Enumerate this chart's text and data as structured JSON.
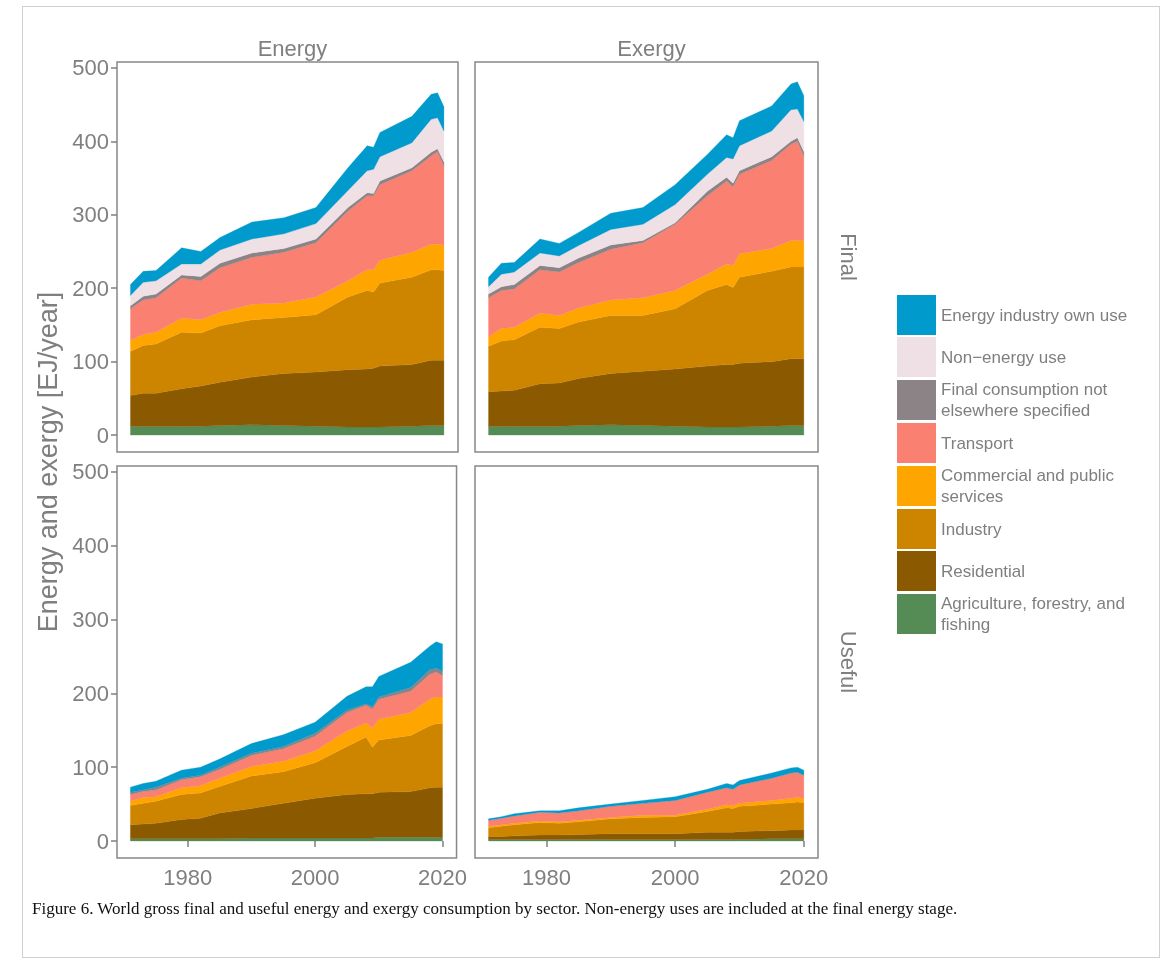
{
  "chart_data": [
    {
      "type": "area",
      "stacked": true,
      "title": "Energy",
      "ylabel": "Energy and exergy [EJ/year]",
      "annotations": [
        "Figure 6. World gross final and useful energy and exergy consumption by sector. Non-energy uses are included at the final energy stage."
      ],
      "x": [
        1971,
        1973,
        1975,
        1979,
        1982,
        1985,
        1990,
        1995,
        2000,
        2005,
        2008,
        2009,
        2010,
        2015,
        2018,
        2019,
        2020
      ],
      "xlim": [
        1968.9,
        2022.2
      ],
      "xticks": [
        1980,
        2000,
        2020
      ],
      "ylim": [
        -23,
        508
      ],
      "yticks": [
        0,
        100,
        200,
        300,
        400,
        500
      ],
      "tick_labels": "y",
      "series": [
        {
          "color": "#558b55",
          "values": [
            12,
            12,
            12,
            12,
            12,
            13,
            14,
            13,
            12,
            11,
            11,
            11,
            11,
            12,
            13,
            13,
            13
          ]
        },
        {
          "color": "#8b5a00",
          "values": [
            42,
            45,
            45,
            51,
            55,
            59,
            65,
            71,
            74,
            78,
            79,
            80,
            83,
            84,
            89,
            89,
            89
          ]
        },
        {
          "color": "#cd8500",
          "values": [
            60,
            65,
            67,
            77,
            72,
            77,
            78,
            76,
            78,
            99,
            107,
            104,
            113,
            119,
            123,
            123,
            122
          ]
        },
        {
          "color": "#ffa500",
          "values": [
            15,
            15,
            16,
            19,
            18,
            18,
            21,
            20,
            24,
            22,
            28,
            30,
            31,
            34,
            35,
            35,
            35
          ]
        },
        {
          "color": "#fa8072",
          "values": [
            43,
            47,
            47,
            55,
            53,
            61,
            64,
            69,
            74,
            95,
            101,
            101,
            103,
            111,
            120,
            126,
            107
          ]
        },
        {
          "color": "#8b8386",
          "values": [
            4,
            5,
            5,
            4,
            6,
            6,
            6,
            5,
            5,
            5,
            4,
            3,
            5,
            4,
            5,
            4,
            6
          ]
        },
        {
          "color": "#eee0e5",
          "values": [
            14,
            19,
            18,
            15,
            17,
            18,
            19,
            20,
            21,
            23,
            30,
            33,
            33,
            34,
            45,
            42,
            42
          ]
        },
        {
          "color": "#009acd",
          "values": [
            15,
            15,
            14,
            22,
            17,
            17,
            23,
            22,
            22,
            31,
            34,
            30,
            33,
            36,
            34,
            34,
            33
          ]
        }
      ]
    },
    {
      "type": "area",
      "stacked": true,
      "title": "Exergy",
      "annotations": [
        "Final"
      ],
      "legend": "right",
      "x": [
        1971,
        1973,
        1975,
        1979,
        1982,
        1985,
        1990,
        1995,
        2000,
        2005,
        2008,
        2009,
        2010,
        2015,
        2018,
        2019,
        2020
      ],
      "xlim": [
        1968.9,
        2022.2
      ],
      "xticks": [
        1980,
        2000,
        2020
      ],
      "ylim": [
        -23,
        508
      ],
      "yticks": [
        0,
        100,
        200,
        300,
        400,
        500
      ],
      "tick_labels": false,
      "series": [
        {
          "name": "Agriculture, forestry, and fishing",
          "color": "#558b55",
          "values": [
            12,
            12,
            12,
            12,
            12,
            13,
            14,
            13,
            12,
            11,
            11,
            11,
            11,
            12,
            13,
            13,
            13
          ]
        },
        {
          "name": "Residential",
          "color": "#8b5a00",
          "values": [
            47,
            48,
            49,
            58,
            59,
            64,
            70,
            74,
            78,
            83,
            85,
            85,
            87,
            88,
            91,
            91,
            91
          ]
        },
        {
          "name": "Industry",
          "color": "#cd8500",
          "values": [
            62,
            68,
            69,
            77,
            74,
            77,
            79,
            76,
            82,
            103,
            109,
            105,
            117,
            123,
            125,
            125,
            125
          ]
        },
        {
          "name": "Commercial and public services",
          "color": "#ffa500",
          "values": [
            13,
            17,
            17,
            19,
            18,
            19,
            21,
            24,
            25,
            22,
            28,
            30,
            32,
            31,
            36,
            36,
            36
          ]
        },
        {
          "name": "Transport",
          "color": "#fa8072",
          "values": [
            53,
            52,
            52,
            59,
            59,
            62,
            69,
            75,
            90,
            107,
            113,
            107,
            108,
            120,
            131,
            135,
            115
          ]
        },
        {
          "name": "Final consumption not elsewhere specified",
          "color": "#8b8386",
          "values": [
            5,
            5,
            6,
            6,
            6,
            6,
            6,
            3,
            2,
            6,
            5,
            5,
            5,
            5,
            4,
            5,
            6
          ]
        },
        {
          "name": "Non−energy use",
          "color": "#eee0e5",
          "values": [
            10,
            17,
            17,
            17,
            16,
            17,
            21,
            22,
            25,
            23,
            27,
            33,
            34,
            35,
            43,
            39,
            41
          ]
        },
        {
          "name": "Energy industry own use",
          "color": "#009acd",
          "values": [
            13,
            15,
            13,
            19,
            17,
            18,
            22,
            23,
            27,
            27,
            31,
            29,
            34,
            34,
            35,
            37,
            35
          ]
        }
      ]
    },
    {
      "type": "area",
      "stacked": true,
      "x": [
        1971,
        1973,
        1975,
        1979,
        1982,
        1985,
        1990,
        1995,
        2000,
        2005,
        2008,
        2009,
        2010,
        2015,
        2018,
        2019,
        2020
      ],
      "xlim": [
        1968.9,
        2022.2
      ],
      "xticks": [
        1980,
        2000,
        2020
      ],
      "ylim": [
        -23,
        508
      ],
      "yticks": [
        0,
        100,
        200,
        300,
        400,
        500
      ],
      "series": [
        {
          "color": "#558b55",
          "values": [
            3,
            3,
            3,
            3,
            3,
            3,
            4,
            4,
            4,
            4,
            4,
            4,
            5,
            5,
            5,
            5,
            5
          ]
        },
        {
          "color": "#8b5a00",
          "values": [
            19,
            20,
            21,
            26,
            28,
            35,
            40,
            47,
            54,
            59,
            60,
            60,
            61,
            62,
            67,
            68,
            68
          ]
        },
        {
          "color": "#cd8500",
          "values": [
            26,
            28,
            30,
            34,
            34,
            36,
            44,
            43,
            48,
            65,
            77,
            63,
            71,
            76,
            84,
            86,
            86
          ]
        },
        {
          "color": "#ffa500",
          "values": [
            6,
            8,
            6,
            9,
            10,
            11,
            13,
            14,
            16,
            21,
            19,
            26,
            28,
            31,
            36,
            36,
            36
          ]
        },
        {
          "color": "#fa8072",
          "values": [
            9,
            8,
            9,
            11,
            12,
            12,
            15,
            17,
            20,
            25,
            24,
            26,
            27,
            29,
            34,
            34,
            29
          ]
        },
        {
          "color": "#8b8386",
          "values": [
            3,
            2,
            4,
            2,
            2,
            3,
            3,
            3,
            4,
            3,
            2,
            3,
            3,
            5,
            6,
            5,
            6
          ]
        },
        {
          "color": "#009acd",
          "values": [
            7,
            9,
            8,
            11,
            11,
            11,
            13,
            16,
            15,
            19,
            23,
            27,
            28,
            34,
            32,
            36,
            37
          ]
        }
      ]
    },
    {
      "type": "area",
      "stacked": true,
      "annotations": [
        "Useful"
      ],
      "x": [
        1971,
        1973,
        1975,
        1979,
        1982,
        1985,
        1990,
        1995,
        2000,
        2005,
        2008,
        2009,
        2010,
        2015,
        2018,
        2019,
        2020
      ],
      "xlim": [
        1968.9,
        2022.2
      ],
      "xticks": [
        1980,
        2000,
        2020
      ],
      "ylim": [
        -23,
        508
      ],
      "yticks": [
        0,
        100,
        200,
        300,
        400,
        500
      ],
      "tick_labels": "x",
      "series": [
        {
          "color": "#558b55",
          "values": [
            2,
            2,
            2,
            2,
            2,
            2,
            2,
            2,
            2,
            2,
            2,
            2,
            2,
            3,
            3,
            3,
            3
          ]
        },
        {
          "color": "#8b5a00",
          "values": [
            4,
            4,
            5,
            6,
            6,
            7,
            8,
            8,
            8,
            10,
            10,
            10,
            11,
            11,
            12,
            12,
            12
          ]
        },
        {
          "color": "#cd8500",
          "values": [
            12,
            14,
            15,
            17,
            16,
            17,
            20,
            22,
            23,
            28,
            33,
            32,
            34,
            36,
            37,
            38,
            37
          ]
        },
        {
          "color": "#ffa500",
          "values": [
            2,
            2,
            2,
            2,
            2,
            2,
            2,
            3,
            2,
            3,
            4,
            4,
            4,
            5,
            6,
            6,
            6
          ]
        },
        {
          "color": "#fa8072",
          "values": [
            8,
            9,
            10,
            12,
            12,
            13,
            15,
            16,
            20,
            23,
            23,
            22,
            25,
            30,
            34,
            34,
            31
          ]
        },
        {
          "color": "#009acd",
          "values": [
            2,
            2,
            3,
            2,
            3,
            4,
            3,
            4,
            5,
            4,
            6,
            6,
            6,
            7,
            7,
            7,
            7
          ]
        }
      ]
    }
  ]
}
